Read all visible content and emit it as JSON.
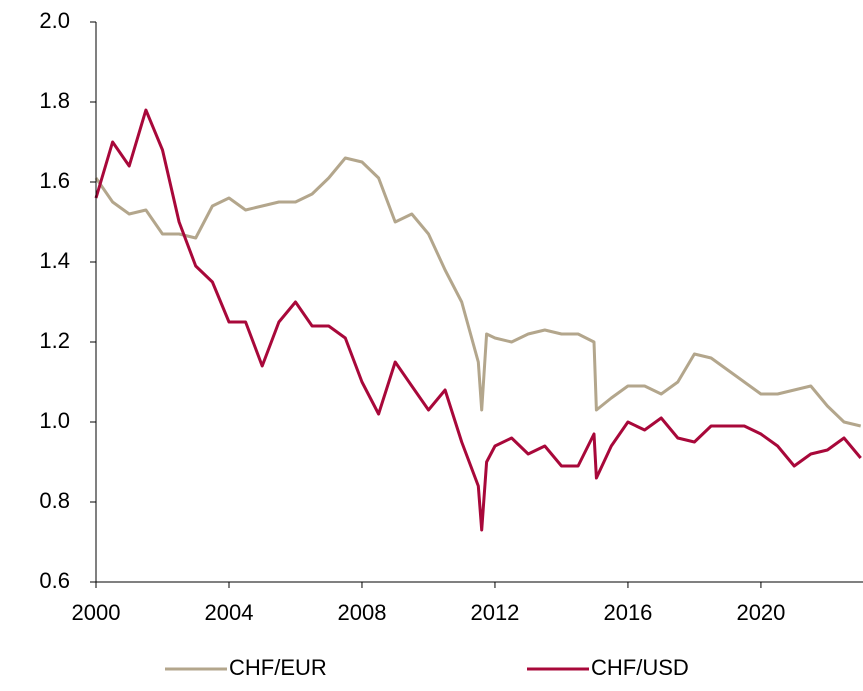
{
  "chart_data": {
    "type": "line",
    "x": [
      2000,
      2000.5,
      2001,
      2001.5,
      2002,
      2002.5,
      2003,
      2003.5,
      2004,
      2004.5,
      2005,
      2005.5,
      2006,
      2006.5,
      2007,
      2007.5,
      2008,
      2008.5,
      2009,
      2009.5,
      2010,
      2010.5,
      2011,
      2011.5,
      2011.6,
      2011.75,
      2012,
      2012.5,
      2013,
      2013.5,
      2014,
      2014.5,
      2014.98,
      2015.05,
      2015.5,
      2016,
      2016.5,
      2017,
      2017.5,
      2018,
      2018.5,
      2019,
      2019.5,
      2020,
      2020.5,
      2021,
      2021.5,
      2022,
      2022.5,
      2023
    ],
    "series": [
      {
        "name": "CHF/EUR",
        "color": "#b3a68c",
        "values": [
          1.61,
          1.55,
          1.52,
          1.53,
          1.47,
          1.47,
          1.46,
          1.54,
          1.56,
          1.53,
          1.54,
          1.55,
          1.55,
          1.57,
          1.61,
          1.66,
          1.65,
          1.61,
          1.5,
          1.52,
          1.47,
          1.38,
          1.3,
          1.15,
          1.03,
          1.22,
          1.21,
          1.2,
          1.22,
          1.23,
          1.22,
          1.22,
          1.2,
          1.03,
          1.06,
          1.09,
          1.09,
          1.07,
          1.1,
          1.17,
          1.16,
          1.13,
          1.1,
          1.07,
          1.07,
          1.08,
          1.09,
          1.04,
          1.0,
          0.99
        ]
      },
      {
        "name": "CHF/USD",
        "color": "#a8083a",
        "values": [
          1.56,
          1.7,
          1.64,
          1.78,
          1.68,
          1.5,
          1.39,
          1.35,
          1.25,
          1.25,
          1.14,
          1.25,
          1.3,
          1.24,
          1.24,
          1.21,
          1.1,
          1.02,
          1.15,
          1.09,
          1.03,
          1.08,
          0.95,
          0.84,
          0.73,
          0.9,
          0.94,
          0.96,
          0.92,
          0.94,
          0.89,
          0.89,
          0.97,
          0.86,
          0.94,
          1.0,
          0.98,
          1.01,
          0.96,
          0.95,
          0.99,
          0.99,
          0.99,
          0.97,
          0.94,
          0.89,
          0.92,
          0.93,
          0.96,
          0.91
        ]
      }
    ],
    "xlim": [
      2000,
      2023.07
    ],
    "xticks": [
      2000,
      2004,
      2008,
      2012,
      2016,
      2020
    ],
    "ylim": [
      0.6,
      2.0
    ],
    "yticks": [
      0.6,
      0.8,
      {
        "value": 1.0,
        "label": "1.0"
      },
      1.2,
      1.4,
      1.6,
      1.8,
      {
        "value": 2.0,
        "label": "2.0"
      }
    ],
    "grid": false,
    "legend": "bottom"
  }
}
